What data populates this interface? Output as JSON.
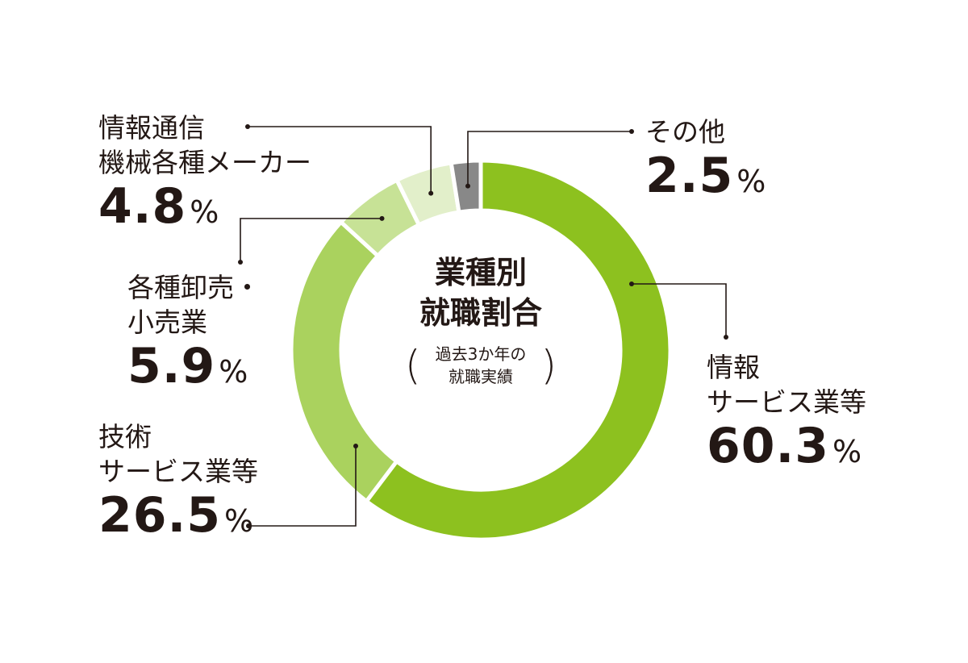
{
  "chart_data": {
    "type": "pie",
    "variant": "donut",
    "center_title": [
      "業種別",
      "就職割合"
    ],
    "center_subtitle": [
      "過去3か年の",
      "就職実績"
    ],
    "percent_unit": "%",
    "slices": [
      {
        "name_lines": [
          "情報",
          "サービス業等"
        ],
        "value": 60.3,
        "value_text": "60.3",
        "color": "#8dc11f"
      },
      {
        "name_lines": [
          "技術",
          "サービス業等"
        ],
        "value": 26.5,
        "value_text": "26.5",
        "color": "#aad25e"
      },
      {
        "name_lines": [
          "各種卸売・",
          "小売業"
        ],
        "value": 5.9,
        "value_text": "5.9",
        "color": "#c7e296"
      },
      {
        "name_lines": [
          "情報通信",
          "機械各種メーカー"
        ],
        "value": 4.8,
        "value_text": "4.8",
        "color": "#e2efca"
      },
      {
        "name_lines": [
          "その他"
        ],
        "value": 2.5,
        "value_text": "2.5",
        "color": "#888888"
      }
    ]
  }
}
